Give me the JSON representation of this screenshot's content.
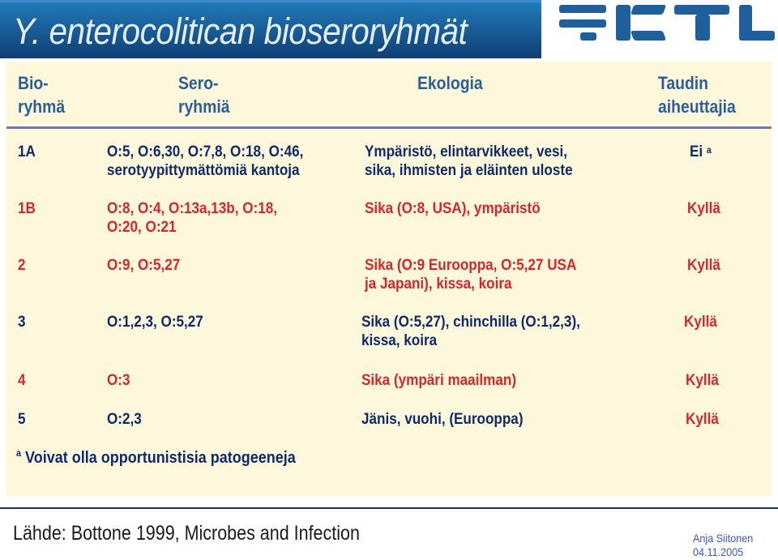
{
  "title": "Y. enterocolitican bioseroryhmät",
  "headers": {
    "bio_line1": "Bio-",
    "bio_line2": "ryhmä",
    "sero_line1": "Sero-",
    "sero_line2": "ryhmiä",
    "ecology": "Ekologia",
    "disease_line1": "Taudin",
    "disease_line2": "aiheuttajia"
  },
  "rows": [
    {
      "bio": "1A",
      "sero": [
        "O:5, O:6,30, O:7,8, O:18, O:46,",
        "serotyypittymättömiä kantoja"
      ],
      "ecology": [
        "Ympäristö, elintarvikkeet, vesi,",
        "sika, ihmisten ja eläinten uloste"
      ],
      "disease": "Ei",
      "disease_note": "a"
    },
    {
      "bio": "1B",
      "sero": [
        "O:8, O:4, O:13a,13b, O:18,",
        "O:20, O:21"
      ],
      "ecology": [
        "Sika (O:8, USA), ympäristö"
      ],
      "disease": "Kyllä"
    },
    {
      "bio": "2",
      "sero": [
        "O:9, O:5,27"
      ],
      "ecology": [
        "Sika (O:9 Eurooppa, O:5,27 USA",
        "ja Japani), kissa, koira"
      ],
      "disease": "Kyllä"
    },
    {
      "bio": "3",
      "sero": [
        "O:1,2,3, O:5,27"
      ],
      "ecology": [
        "Sika (O:5,27), chinchilla (O:1,2,3),",
        "kissa, koira"
      ],
      "disease": "Kyllä"
    },
    {
      "bio": "4",
      "sero": [
        "O:3"
      ],
      "ecology": [
        "Sika (ympäri maailman)"
      ],
      "disease": "Kyllä"
    },
    {
      "bio": "5",
      "sero": [
        "O:2,3"
      ],
      "ecology": [
        "Jänis, vuohi, (Eurooppa)"
      ],
      "disease": "Kyllä"
    }
  ],
  "footnote": {
    "marker": "a",
    "text": "Voivat olla opportunistisia patogeeneja"
  },
  "source": "Lähde: Bottone 1999, Microbes and Infection",
  "author": "Anja Siitonen",
  "date": "04.11.2005",
  "colors": {
    "title_bg": "#1a5f9a",
    "panel_bg": "#fdf8dc",
    "header_text": "#2c5e95",
    "dark_text": "#0f2a6b",
    "red_text": "#d6262c",
    "logo_blue": "#1e5f9c"
  }
}
